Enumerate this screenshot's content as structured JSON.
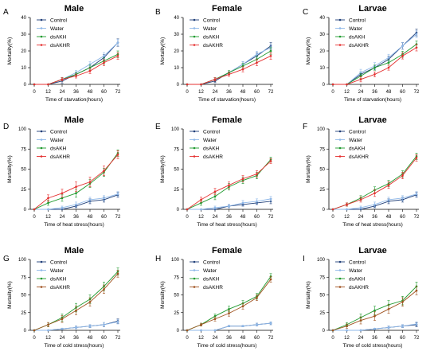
{
  "figure": {
    "background": "#ffffff"
  },
  "colors": {
    "Control": "#1f3e78",
    "Water": "#8fb8e8",
    "dsAKH": "#1f9a2e",
    "dsAKHR": "#e53030",
    "dsAKHR_row3": "#a0521f"
  },
  "chart_data": [
    {
      "letter": "A",
      "title": "Male",
      "type": "line",
      "xlabel": "Time of starvation(hours)",
      "ylabel": "Mortality(%)",
      "x": [
        0,
        12,
        24,
        36,
        48,
        60,
        72
      ],
      "ylim": [
        0,
        40
      ],
      "yticks": [
        0,
        10,
        20,
        30,
        40
      ],
      "legend_labels": [
        "Control",
        "Water",
        "dsAKH",
        "dsAKHR"
      ],
      "series": [
        {
          "name": "Control",
          "color": "#1f3e78",
          "values": [
            0,
            0,
            2,
            6,
            10,
            16,
            25
          ],
          "errors": [
            0,
            0,
            1.2,
            1.2,
            1.5,
            1.8,
            2.2
          ]
        },
        {
          "name": "Water",
          "color": "#8fb8e8",
          "values": [
            0,
            0,
            3,
            7,
            12,
            17,
            25
          ],
          "errors": [
            0,
            0,
            1.2,
            1.3,
            1.5,
            2,
            2
          ]
        },
        {
          "name": "dsAKH",
          "color": "#1f9a2e",
          "values": [
            0,
            0,
            3,
            6,
            10,
            14,
            18
          ],
          "errors": [
            0,
            0,
            1,
            1.2,
            1.5,
            1.8,
            2
          ]
        },
        {
          "name": "dsAKHR",
          "color": "#e53030",
          "values": [
            0,
            0,
            3,
            5,
            8,
            13,
            17
          ],
          "errors": [
            0,
            0,
            1,
            1.2,
            1.5,
            1.8,
            2
          ]
        }
      ]
    },
    {
      "letter": "B",
      "title": "Female",
      "type": "line",
      "xlabel": "Time of starvation(hours)",
      "ylabel": "Mortality(%)",
      "x": [
        0,
        12,
        24,
        36,
        48,
        60,
        72
      ],
      "ylim": [
        0,
        40
      ],
      "yticks": [
        0,
        10,
        20,
        30,
        40
      ],
      "legend_labels": [
        "Control",
        "Water",
        "dsAKH",
        "dsAKHR"
      ],
      "series": [
        {
          "name": "Control",
          "color": "#1f3e78",
          "values": [
            0,
            0,
            2,
            7,
            12,
            17,
            23
          ],
          "errors": [
            0,
            0,
            1,
            1.2,
            1.5,
            1.8,
            2
          ]
        },
        {
          "name": "Water",
          "color": "#8fb8e8",
          "values": [
            0,
            0,
            3,
            7,
            12,
            18,
            22
          ],
          "errors": [
            0,
            0,
            1,
            1.2,
            1.5,
            1.8,
            2
          ]
        },
        {
          "name": "dsAKH",
          "color": "#1f9a2e",
          "values": [
            0,
            0,
            3,
            7,
            11,
            15,
            20
          ],
          "errors": [
            0,
            0,
            1,
            1.2,
            1.5,
            1.8,
            2
          ]
        },
        {
          "name": "dsAKHR",
          "color": "#e53030",
          "values": [
            0,
            0,
            3,
            6,
            9,
            13,
            17
          ],
          "errors": [
            0,
            0,
            1,
            1.2,
            1.5,
            1.8,
            2
          ]
        }
      ]
    },
    {
      "letter": "C",
      "title": "Larvae",
      "type": "line",
      "xlabel": "Time of starvation(hours)",
      "ylabel": "Mortality(%)",
      "x": [
        0,
        12,
        24,
        36,
        48,
        60,
        72
      ],
      "ylim": [
        0,
        40
      ],
      "yticks": [
        0,
        10,
        20,
        30,
        40
      ],
      "legend_labels": [
        "Control",
        "Water",
        "dsAKH",
        "dsAKHR"
      ],
      "series": [
        {
          "name": "Control",
          "color": "#1f3e78",
          "values": [
            0,
            0,
            6,
            10,
            15,
            23,
            31
          ],
          "errors": [
            0,
            0,
            1.5,
            1.5,
            1.8,
            2,
            2
          ]
        },
        {
          "name": "Water",
          "color": "#8fb8e8",
          "values": [
            0,
            0,
            7,
            11,
            16,
            23,
            30
          ],
          "errors": [
            0,
            0,
            2,
            2,
            2,
            2,
            2
          ]
        },
        {
          "name": "dsAKH",
          "color": "#1f9a2e",
          "values": [
            0,
            0,
            5,
            10,
            13,
            18,
            24
          ],
          "errors": [
            0,
            0,
            1.5,
            1.5,
            1.5,
            1.8,
            2
          ]
        },
        {
          "name": "dsAKHR",
          "color": "#e53030",
          "values": [
            0,
            0,
            3,
            6,
            10,
            17,
            22
          ],
          "errors": [
            0,
            0,
            1.5,
            1.5,
            1.5,
            1.8,
            2
          ]
        }
      ]
    },
    {
      "letter": "D",
      "title": "Male",
      "type": "line",
      "xlabel": "Time of heat stress(hours)",
      "ylabel": "Mortality(%)",
      "x": [
        0,
        12,
        24,
        36,
        48,
        60,
        72
      ],
      "ylim": [
        0,
        100
      ],
      "yticks": [
        0,
        25,
        50,
        75,
        100
      ],
      "legend_labels": [
        "Control",
        "Water",
        "dsAKH",
        "dsAKHR"
      ],
      "series": [
        {
          "name": "Control",
          "color": "#1f3e78",
          "values": [
            0,
            0,
            0,
            4,
            10,
            12,
            18
          ],
          "errors": [
            0,
            0,
            0,
            2,
            3,
            3,
            3
          ]
        },
        {
          "name": "Water",
          "color": "#8fb8e8",
          "values": [
            0,
            0,
            2,
            6,
            12,
            14,
            19
          ],
          "errors": [
            0,
            0,
            2,
            3,
            3,
            3,
            3
          ]
        },
        {
          "name": "dsAKH",
          "color": "#1f9a2e",
          "values": [
            0,
            8,
            14,
            20,
            32,
            46,
            70
          ],
          "errors": [
            0,
            3,
            4,
            5,
            5,
            5,
            4
          ]
        },
        {
          "name": "dsAKHR",
          "color": "#e53030",
          "values": [
            0,
            14,
            20,
            28,
            34,
            48,
            68
          ],
          "errors": [
            0,
            4,
            5,
            6,
            6,
            6,
            5
          ]
        }
      ]
    },
    {
      "letter": "E",
      "title": "Female",
      "type": "line",
      "xlabel": "Time of heat stress(hours)",
      "ylabel": "Mortality(%)",
      "x": [
        0,
        12,
        24,
        36,
        48,
        60,
        72
      ],
      "ylim": [
        0,
        100
      ],
      "yticks": [
        0,
        25,
        50,
        75,
        100
      ],
      "legend_labels": [
        "Control",
        "Water",
        "dsAKH",
        "dsAKHR"
      ],
      "series": [
        {
          "name": "Control",
          "color": "#1f3e78",
          "values": [
            0,
            0,
            0,
            4,
            6,
            8,
            10
          ],
          "errors": [
            0,
            0,
            0,
            2,
            2,
            2,
            3
          ]
        },
        {
          "name": "Water",
          "color": "#8fb8e8",
          "values": [
            0,
            0,
            2,
            4,
            8,
            10,
            13
          ],
          "errors": [
            0,
            0,
            2,
            2,
            3,
            3,
            3
          ]
        },
        {
          "name": "dsAKH",
          "color": "#1f9a2e",
          "values": [
            0,
            8,
            16,
            28,
            36,
            42,
            62
          ],
          "errors": [
            0,
            3,
            4,
            4,
            4,
            4,
            3
          ]
        },
        {
          "name": "dsAKHR",
          "color": "#e53030",
          "values": [
            0,
            12,
            22,
            30,
            38,
            44,
            60
          ],
          "errors": [
            0,
            3,
            4,
            4,
            4,
            4,
            3
          ]
        }
      ]
    },
    {
      "letter": "F",
      "title": "Larvae",
      "type": "line",
      "xlabel": "Time of heat stress(hours)",
      "ylabel": "Mortality(%)",
      "x": [
        0,
        12,
        24,
        36,
        48,
        60,
        72
      ],
      "ylim": [
        0,
        100
      ],
      "yticks": [
        0,
        25,
        50,
        75,
        100
      ],
      "legend_labels": [
        "Control",
        "Water",
        "dsAKH",
        "dsAKHR"
      ],
      "series": [
        {
          "name": "Control",
          "color": "#1f3e78",
          "values": [
            0,
            0,
            0,
            4,
            10,
            12,
            18
          ],
          "errors": [
            0,
            0,
            0,
            2,
            3,
            3,
            3
          ]
        },
        {
          "name": "Water",
          "color": "#8fb8e8",
          "values": [
            0,
            0,
            2,
            6,
            12,
            14,
            19
          ],
          "errors": [
            0,
            0,
            2,
            3,
            3,
            3,
            3
          ]
        },
        {
          "name": "dsAKH",
          "color": "#1f9a2e",
          "values": [
            0,
            6,
            14,
            24,
            32,
            44,
            66
          ],
          "errors": [
            0,
            2,
            3,
            4,
            4,
            4,
            4
          ]
        },
        {
          "name": "dsAKHR",
          "color": "#e53030",
          "values": [
            0,
            6,
            12,
            20,
            30,
            42,
            64
          ],
          "errors": [
            0,
            2,
            3,
            4,
            4,
            4,
            4
          ]
        }
      ]
    },
    {
      "letter": "G",
      "title": "Male",
      "type": "line",
      "xlabel": "Time of cold stress(hours)",
      "ylabel": "Mortality(%)",
      "x": [
        0,
        12,
        24,
        36,
        48,
        60,
        72
      ],
      "ylim": [
        0,
        100
      ],
      "yticks": [
        0,
        25,
        50,
        75,
        100
      ],
      "legend_labels": [
        "Control",
        "Water",
        "dsAKH",
        "dsAKHR"
      ],
      "series": [
        {
          "name": "Control",
          "color": "#1f3e78",
          "values": [
            0,
            0,
            2,
            4,
            6,
            8,
            13
          ],
          "errors": [
            0,
            0,
            1,
            2,
            2,
            3,
            3
          ]
        },
        {
          "name": "Water",
          "color": "#8fb8e8",
          "values": [
            0,
            0,
            2,
            4,
            6,
            8,
            12
          ],
          "errors": [
            0,
            0,
            1,
            2,
            2,
            3,
            3
          ]
        },
        {
          "name": "dsAKH",
          "color": "#1f9a2e",
          "values": [
            0,
            8,
            18,
            32,
            44,
            62,
            83
          ],
          "errors": [
            0,
            3,
            5,
            6,
            6,
            6,
            5
          ]
        },
        {
          "name": "dsAKHR",
          "color": "#a0521f",
          "values": [
            0,
            8,
            16,
            28,
            40,
            58,
            80
          ],
          "errors": [
            0,
            3,
            5,
            6,
            6,
            6,
            5
          ]
        }
      ]
    },
    {
      "letter": "H",
      "title": "Female",
      "type": "line",
      "xlabel": "Time of cold stress(hours)",
      "ylabel": "Mortality(%)",
      "x": [
        0,
        12,
        24,
        36,
        48,
        60,
        72
      ],
      "ylim": [
        0,
        100
      ],
      "yticks": [
        0,
        25,
        50,
        75,
        100
      ],
      "legend_labels": [
        "Control",
        "Water",
        "dsAKH",
        "dsAKHR"
      ],
      "series": [
        {
          "name": "Control",
          "color": "#1f3e78",
          "values": [
            0,
            0,
            0,
            6,
            6,
            8,
            10
          ],
          "errors": [
            0,
            0,
            0,
            1,
            1,
            2,
            2
          ]
        },
        {
          "name": "Water",
          "color": "#8fb8e8",
          "values": [
            0,
            0,
            0,
            6,
            6,
            8,
            10
          ],
          "errors": [
            0,
            0,
            0,
            1,
            1,
            2,
            2
          ]
        },
        {
          "name": "dsAKH",
          "color": "#1f9a2e",
          "values": [
            0,
            8,
            20,
            30,
            38,
            48,
            76
          ],
          "errors": [
            0,
            2,
            3,
            4,
            4,
            4,
            4
          ]
        },
        {
          "name": "dsAKHR",
          "color": "#a0521f",
          "values": [
            0,
            8,
            16,
            24,
            34,
            46,
            72
          ],
          "errors": [
            0,
            2,
            3,
            4,
            4,
            4,
            4
          ]
        }
      ]
    },
    {
      "letter": "I",
      "title": "Larvae",
      "type": "line",
      "xlabel": "Time of cold stress(hours)",
      "ylabel": "Mortality(%)",
      "x": [
        0,
        12,
        24,
        36,
        48,
        60,
        72
      ],
      "ylim": [
        0,
        100
      ],
      "yticks": [
        0,
        25,
        50,
        75,
        100
      ],
      "legend_labels": [
        "Control",
        "Water",
        "dsAKH",
        "dsAKHR"
      ],
      "series": [
        {
          "name": "Control",
          "color": "#1f3e78",
          "values": [
            0,
            0,
            0,
            2,
            4,
            6,
            8
          ],
          "errors": [
            0,
            0,
            0,
            1,
            2,
            2,
            3
          ]
        },
        {
          "name": "Water",
          "color": "#8fb8e8",
          "values": [
            0,
            0,
            0,
            2,
            4,
            6,
            9
          ],
          "errors": [
            0,
            0,
            0,
            1,
            2,
            2,
            3
          ]
        },
        {
          "name": "dsAKH",
          "color": "#1f9a2e",
          "values": [
            0,
            8,
            18,
            28,
            36,
            42,
            62
          ],
          "errors": [
            0,
            3,
            5,
            6,
            6,
            6,
            6
          ]
        },
        {
          "name": "dsAKHR",
          "color": "#a0521f",
          "values": [
            0,
            6,
            14,
            20,
            30,
            40,
            56
          ],
          "errors": [
            0,
            3,
            5,
            6,
            6,
            6,
            6
          ]
        }
      ]
    }
  ]
}
